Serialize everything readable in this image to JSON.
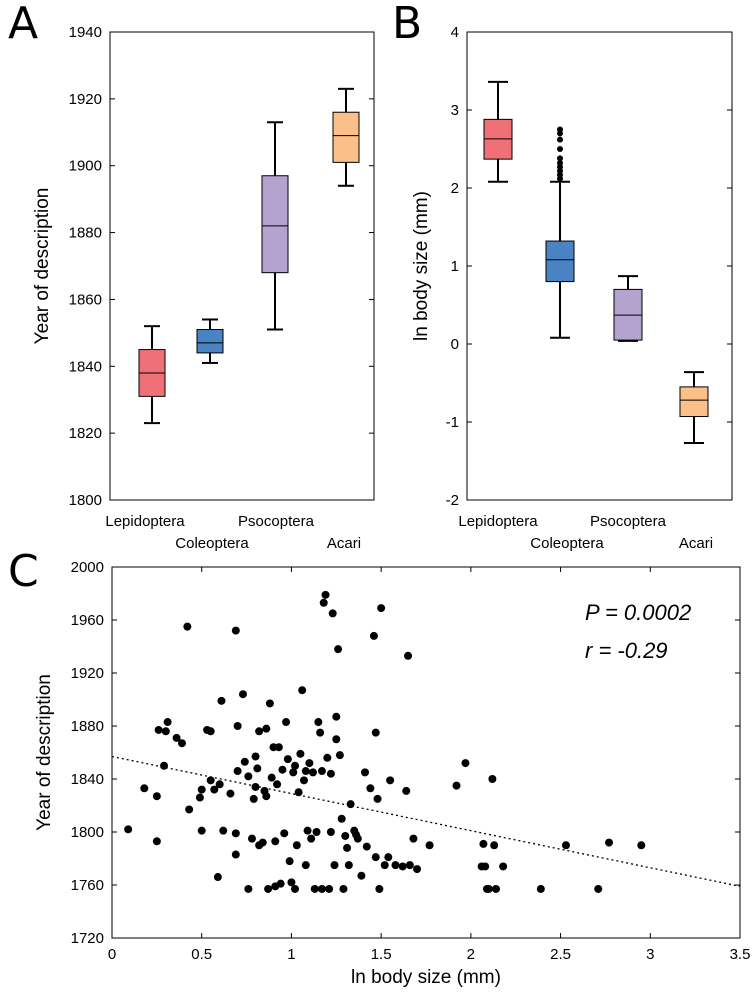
{
  "panels": [
    {
      "letter": "A"
    },
    {
      "letter": "B"
    },
    {
      "letter": "C"
    }
  ],
  "chart_data": [
    {
      "id": "A",
      "type": "box",
      "ylabel": "Year of description",
      "xlabel": "",
      "ylim": [
        1800,
        1940
      ],
      "yticks": [
        "1800",
        "1820",
        "1840",
        "1860",
        "1880",
        "1900",
        "1920",
        "1940"
      ],
      "yticks_values": [
        1800,
        1820,
        1840,
        1860,
        1880,
        1900,
        1920,
        1940
      ],
      "categories": [
        "Lepidoptera",
        "Coleoptera",
        "Psocoptera",
        "Acari"
      ],
      "boxes": [
        {
          "name": "Lepidoptera",
          "whisker_low": 1823,
          "q1": 1831,
          "median": 1838,
          "q3": 1845,
          "whisker_high": 1852,
          "outliers": [],
          "color": "#f07078"
        },
        {
          "name": "Coleoptera",
          "whisker_low": 1841,
          "q1": 1844,
          "median": 1847,
          "q3": 1851,
          "whisker_high": 1854,
          "outliers": [],
          "color": "#4a83c4"
        },
        {
          "name": "Psocoptera",
          "whisker_low": 1851,
          "q1": 1868,
          "median": 1882,
          "q3": 1897,
          "whisker_high": 1913,
          "outliers": [],
          "color": "#b4a3cf"
        },
        {
          "name": "Acari",
          "whisker_low": 1894,
          "q1": 1901,
          "median": 1909,
          "q3": 1916,
          "whisker_high": 1923,
          "outliers": [],
          "color": "#fbbf8a"
        }
      ]
    },
    {
      "id": "B",
      "type": "box",
      "ylabel": "ln body size (mm)",
      "xlabel": "",
      "ylim": [
        -2,
        4
      ],
      "yticks": [
        "-2",
        "-1",
        "0",
        "1",
        "2",
        "3",
        "4"
      ],
      "yticks_values": [
        -2,
        -1,
        0,
        1,
        2,
        3,
        4
      ],
      "categories": [
        "Lepidoptera",
        "Coleoptera",
        "Psocoptera",
        "Acari"
      ],
      "boxes": [
        {
          "name": "Lepidoptera",
          "whisker_low": 2.08,
          "q1": 2.37,
          "median": 2.63,
          "q3": 2.88,
          "whisker_high": 3.36,
          "outliers": [],
          "color": "#f07078"
        },
        {
          "name": "Coleoptera",
          "whisker_low": 0.08,
          "q1": 0.8,
          "median": 1.08,
          "q3": 1.32,
          "whisker_high": 2.08,
          "outliers": [
            2.12,
            2.17,
            2.22,
            2.27,
            2.32,
            2.38,
            2.5,
            2.62,
            2.7,
            2.75
          ],
          "color": "#4a83c4"
        },
        {
          "name": "Psocoptera",
          "whisker_low": 0.04,
          "q1": 0.05,
          "median": 0.37,
          "q3": 0.7,
          "whisker_high": 0.87,
          "outliers": [],
          "color": "#b4a3cf"
        },
        {
          "name": "Acari",
          "whisker_low": -1.27,
          "q1": -0.93,
          "median": -0.72,
          "q3": -0.55,
          "whisker_high": -0.36,
          "outliers": [],
          "color": "#fbbf8a"
        }
      ]
    },
    {
      "id": "C",
      "type": "scatter",
      "xlabel": "ln body size (mm)",
      "ylabel": "Year of description",
      "xlim": [
        0,
        3.5
      ],
      "ylim": [
        1720,
        2000
      ],
      "xticks": [
        "0",
        "0.5",
        "1",
        "1.5",
        "2",
        "2.5",
        "3",
        "3.5"
      ],
      "xticks_values": [
        0,
        0.5,
        1,
        1.5,
        2,
        2.5,
        3,
        3.5
      ],
      "yticks": [
        "1720",
        "1760",
        "1800",
        "1840",
        "1880",
        "1920",
        "1960",
        "2000"
      ],
      "yticks_values": [
        1720,
        1760,
        1800,
        1840,
        1880,
        1920,
        1960,
        2000
      ],
      "annotations": [
        "P = 0.0002",
        "r = -0.29"
      ],
      "trend_line": {
        "x": [
          0,
          3.5
        ],
        "y": [
          1857,
          1759
        ]
      },
      "points": [
        [
          0.09,
          1802
        ],
        [
          0.18,
          1833
        ],
        [
          0.25,
          1827
        ],
        [
          0.25,
          1793
        ],
        [
          0.26,
          1877
        ],
        [
          0.29,
          1850
        ],
        [
          0.3,
          1876
        ],
        [
          0.31,
          1883
        ],
        [
          0.36,
          1871
        ],
        [
          0.39,
          1867
        ],
        [
          0.42,
          1955
        ],
        [
          0.43,
          1817
        ],
        [
          0.49,
          1826
        ],
        [
          0.5,
          1832
        ],
        [
          0.5,
          1801
        ],
        [
          0.53,
          1877
        ],
        [
          0.55,
          1876
        ],
        [
          0.55,
          1839
        ],
        [
          0.57,
          1832
        ],
        [
          0.59,
          1766
        ],
        [
          0.6,
          1836
        ],
        [
          0.61,
          1899
        ],
        [
          0.62,
          1801
        ],
        [
          0.66,
          1829
        ],
        [
          0.69,
          1952
        ],
        [
          0.69,
          1799
        ],
        [
          0.69,
          1783
        ],
        [
          0.7,
          1880
        ],
        [
          0.7,
          1846
        ],
        [
          0.73,
          1904
        ],
        [
          0.74,
          1853
        ],
        [
          0.76,
          1842
        ],
        [
          0.76,
          1757
        ],
        [
          0.78,
          1795
        ],
        [
          0.79,
          1825
        ],
        [
          0.8,
          1857
        ],
        [
          0.8,
          1834
        ],
        [
          0.81,
          1848
        ],
        [
          0.82,
          1876
        ],
        [
          0.82,
          1790
        ],
        [
          0.84,
          1792
        ],
        [
          0.85,
          1831
        ],
        [
          0.86,
          1827
        ],
        [
          0.86,
          1878
        ],
        [
          0.87,
          1757
        ],
        [
          0.88,
          1897
        ],
        [
          0.89,
          1841
        ],
        [
          0.9,
          1864
        ],
        [
          0.91,
          1793
        ],
        [
          0.91,
          1759
        ],
        [
          0.92,
          1836
        ],
        [
          0.93,
          1864
        ],
        [
          0.94,
          1761
        ],
        [
          0.95,
          1847
        ],
        [
          0.96,
          1799
        ],
        [
          0.97,
          1883
        ],
        [
          0.98,
          1855
        ],
        [
          0.99,
          1778
        ],
        [
          1.0,
          1762
        ],
        [
          1.01,
          1845
        ],
        [
          1.02,
          1850
        ],
        [
          1.02,
          1757
        ],
        [
          1.03,
          1790
        ],
        [
          1.04,
          1830
        ],
        [
          1.05,
          1859
        ],
        [
          1.06,
          1907
        ],
        [
          1.07,
          1839
        ],
        [
          1.08,
          1846
        ],
        [
          1.08,
          1775
        ],
        [
          1.09,
          1801
        ],
        [
          1.1,
          1852
        ],
        [
          1.11,
          1795
        ],
        [
          1.12,
          1845
        ],
        [
          1.13,
          1757
        ],
        [
          1.14,
          1800
        ],
        [
          1.15,
          1883
        ],
        [
          1.16,
          1875
        ],
        [
          1.17,
          1846
        ],
        [
          1.17,
          1757
        ],
        [
          1.18,
          1973
        ],
        [
          1.19,
          1979
        ],
        [
          1.2,
          1856
        ],
        [
          1.21,
          1757
        ],
        [
          1.22,
          1844
        ],
        [
          1.22,
          1800
        ],
        [
          1.23,
          1965
        ],
        [
          1.24,
          1775
        ],
        [
          1.25,
          1887
        ],
        [
          1.25,
          1870
        ],
        [
          1.26,
          1938
        ],
        [
          1.27,
          1858
        ],
        [
          1.28,
          1810
        ],
        [
          1.29,
          1757
        ],
        [
          1.3,
          1797
        ],
        [
          1.31,
          1788
        ],
        [
          1.32,
          1775
        ],
        [
          1.33,
          1821
        ],
        [
          1.35,
          1801
        ],
        [
          1.36,
          1798
        ],
        [
          1.37,
          1795
        ],
        [
          1.39,
          1767
        ],
        [
          1.41,
          1845
        ],
        [
          1.42,
          1789
        ],
        [
          1.44,
          1833
        ],
        [
          1.46,
          1948
        ],
        [
          1.47,
          1875
        ],
        [
          1.47,
          1781
        ],
        [
          1.48,
          1825
        ],
        [
          1.49,
          1757
        ],
        [
          1.5,
          1969
        ],
        [
          1.52,
          1775
        ],
        [
          1.54,
          1781
        ],
        [
          1.55,
          1839
        ],
        [
          1.58,
          1775
        ],
        [
          1.62,
          1774
        ],
        [
          1.64,
          1831
        ],
        [
          1.65,
          1933
        ],
        [
          1.66,
          1775
        ],
        [
          1.68,
          1795
        ],
        [
          1.7,
          1772
        ],
        [
          1.77,
          1790
        ],
        [
          1.92,
          1835
        ],
        [
          1.97,
          1852
        ],
        [
          2.06,
          1774
        ],
        [
          2.07,
          1791
        ],
        [
          2.08,
          1774
        ],
        [
          2.09,
          1757
        ],
        [
          2.1,
          1757
        ],
        [
          2.12,
          1840
        ],
        [
          2.13,
          1790
        ],
        [
          2.14,
          1757
        ],
        [
          2.18,
          1774
        ],
        [
          2.39,
          1757
        ],
        [
          2.53,
          1790
        ],
        [
          2.71,
          1757
        ],
        [
          2.77,
          1792
        ],
        [
          2.95,
          1790
        ]
      ]
    }
  ]
}
